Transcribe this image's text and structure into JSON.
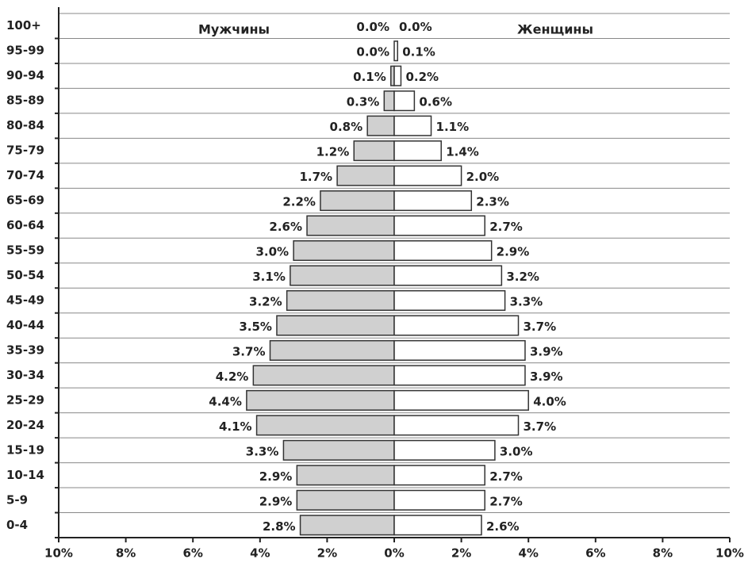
{
  "chart_data": {
    "type": "bar",
    "orientation": "horizontal-mirrored",
    "categories": [
      "100+",
      "95-99",
      "90-94",
      "85-89",
      "80-84",
      "75-79",
      "70-74",
      "65-69",
      "60-64",
      "55-59",
      "50-54",
      "45-49",
      "40-44",
      "35-39",
      "30-34",
      "25-29",
      "20-24",
      "15-19",
      "10-14",
      "5-9",
      "0-4"
    ],
    "series": [
      {
        "name": "Мужчины",
        "color": "#d0d0d0",
        "values": [
          0.0,
          0.0,
          0.1,
          0.3,
          0.8,
          1.2,
          1.7,
          2.2,
          2.6,
          3.0,
          3.1,
          3.2,
          3.5,
          3.7,
          4.2,
          4.4,
          4.1,
          3.3,
          2.9,
          2.9,
          2.8
        ],
        "value_labels": [
          "0.0%",
          "0.0%",
          "0.1%",
          "0.3%",
          "0.8%",
          "1.2%",
          "1.7%",
          "2.2%",
          "2.6%",
          "3.0%",
          "3.1%",
          "3.2%",
          "3.5%",
          "3.7%",
          "4.2%",
          "4.4%",
          "4.1%",
          "3.3%",
          "2.9%",
          "2.9%",
          "2.8%"
        ]
      },
      {
        "name": "Женщины",
        "color": "#ffffff",
        "values": [
          0.0,
          0.1,
          0.2,
          0.6,
          1.1,
          1.4,
          2.0,
          2.3,
          2.7,
          2.9,
          3.2,
          3.3,
          3.7,
          3.9,
          3.9,
          4.0,
          3.7,
          3.0,
          2.7,
          2.7,
          2.6
        ],
        "value_labels": [
          "0.0%",
          "0.1%",
          "0.2%",
          "0.6%",
          "1.1%",
          "1.4%",
          "2.0%",
          "2.3%",
          "2.7%",
          "2.9%",
          "3.2%",
          "3.3%",
          "3.7%",
          "3.9%",
          "3.9%",
          "4.0%",
          "3.7%",
          "3.0%",
          "2.7%",
          "2.7%",
          "2.6%"
        ]
      }
    ],
    "xlim": [
      0,
      10
    ],
    "xticks": [
      {
        "value": 0,
        "label": "0%"
      },
      {
        "value": 2,
        "label": "2%"
      },
      {
        "value": 4,
        "label": "4%"
      },
      {
        "value": 6,
        "label": "6%"
      },
      {
        "value": 8,
        "label": "8%"
      },
      {
        "value": 10,
        "label": "10%"
      }
    ]
  }
}
